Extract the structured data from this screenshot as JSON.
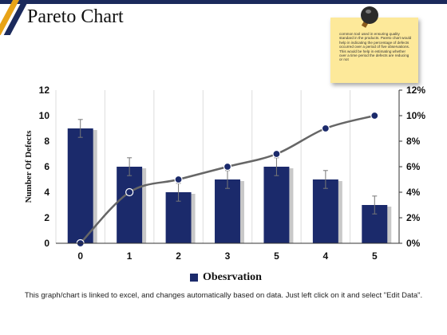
{
  "page": {
    "title": "Pareto Chart",
    "footer": "This graph/chart is linked to excel, and changes automatically based on data. Just left click on it and select \"Edit Data\"."
  },
  "note": {
    "text": "common tool used in ensuring quality standard in the products. Pareto chart would help in indicating the percentage of defects occurred over a period of five observations. This would be help in estimating whether over a time period the defects are reducing or not"
  },
  "colors": {
    "bar": "#1b2a6b",
    "bar_shadow": "#c8c8c8",
    "line": "#666666",
    "marker": "#1b2a6b",
    "accent": "#e8a317",
    "header": "#1b2a5c"
  },
  "chart_data": {
    "type": "bar",
    "categories": [
      "0",
      "1",
      "2",
      "3",
      "5",
      "4",
      "5"
    ],
    "series": [
      {
        "name": "Obesrvation",
        "type": "bar",
        "axis": "left",
        "values": [
          9,
          6,
          4,
          5,
          6,
          5,
          3
        ],
        "error": [
          0.7,
          0.7,
          0.7,
          0.7,
          0.7,
          0.7,
          0.7
        ]
      },
      {
        "type": "line",
        "axis": "right",
        "values": [
          0,
          4,
          5,
          6,
          7,
          9,
          10
        ]
      }
    ],
    "ylabel": "Number Of Defects",
    "ylim": [
      0,
      12
    ],
    "yticks": [
      "0",
      "2",
      "4",
      "6",
      "8",
      "10",
      "12"
    ],
    "y2lim": [
      0,
      12
    ],
    "y2ticks": [
      "0%",
      "2%",
      "4%",
      "6%",
      "8%",
      "10%",
      "12%"
    ],
    "grid": "vertical",
    "legend": "bottom"
  }
}
